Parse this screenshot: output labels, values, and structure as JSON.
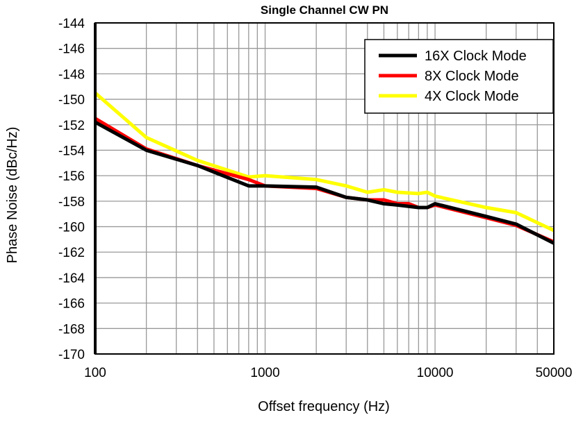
{
  "chart_data": {
    "type": "line",
    "title": "Single Channel  CW PN",
    "xlabel": "Offset frequency (Hz)",
    "ylabel": "Phase Noise (dBc/Hz)",
    "x_scale": "log",
    "xlim": [
      100,
      50000
    ],
    "ylim": [
      -170,
      -144
    ],
    "x_ticks": [
      "100",
      "1000",
      "10000",
      "50000"
    ],
    "y_ticks": [
      "-144",
      "-146",
      "-148",
      "-150",
      "-152",
      "-154",
      "-156",
      "-158",
      "-160",
      "-162",
      "-164",
      "-166",
      "-168",
      "-170"
    ],
    "grid": true,
    "legend_position": "top-right",
    "series": [
      {
        "name": "16X Clock Mode",
        "color": "#000000",
        "x": [
          100,
          200,
          400,
          800,
          1000,
          2000,
          3000,
          4000,
          5000,
          6000,
          8000,
          9000,
          10000,
          20000,
          30000,
          50000
        ],
        "y": [
          -151.8,
          -154.0,
          -155.2,
          -156.8,
          -156.8,
          -156.9,
          -157.7,
          -157.9,
          -158.2,
          -158.3,
          -158.5,
          -158.5,
          -158.2,
          -159.2,
          -159.8,
          -161.3
        ]
      },
      {
        "name": "8X Clock Mode",
        "color": "#ff0000",
        "x": [
          100,
          200,
          400,
          800,
          1000,
          2000,
          3000,
          4000,
          5000,
          6000,
          7000,
          8000,
          9000,
          10000,
          20000,
          30000,
          50000
        ],
        "y": [
          -151.5,
          -153.9,
          -155.2,
          -156.3,
          -156.8,
          -157.0,
          -157.7,
          -157.9,
          -157.9,
          -158.2,
          -158.2,
          -158.5,
          -158.5,
          -158.3,
          -159.3,
          -159.9,
          -161.2
        ]
      },
      {
        "name": "4X Clock Mode",
        "color": "#ffff00",
        "x": [
          100,
          200,
          400,
          800,
          1000,
          2000,
          3000,
          4000,
          5000,
          6000,
          8000,
          9000,
          10000,
          20000,
          30000,
          50000
        ],
        "y": [
          -149.5,
          -153.0,
          -154.8,
          -156.1,
          -156.0,
          -156.3,
          -156.8,
          -157.3,
          -157.1,
          -157.3,
          -157.4,
          -157.3,
          -157.6,
          -158.5,
          -158.9,
          -160.3
        ]
      }
    ]
  }
}
